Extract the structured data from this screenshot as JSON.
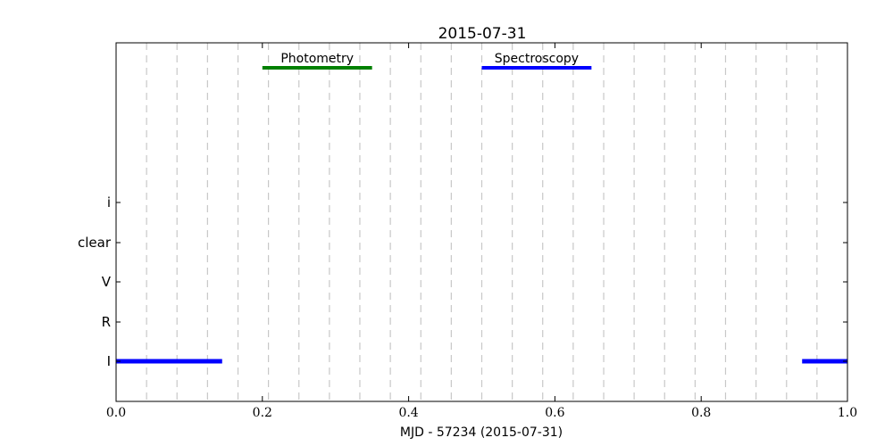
{
  "chart_data": {
    "type": "timeline",
    "title": "2015-07-31",
    "xlabel": "MJD - 57234 (2015-07-31)",
    "xlim": [
      0.0,
      1.0
    ],
    "xticks": [
      "0.0",
      "0.2",
      "0.4",
      "0.6",
      "0.8",
      "1.0"
    ],
    "xtick_values": [
      0.0,
      0.2,
      0.4,
      0.6,
      0.8,
      1.0
    ],
    "categories": [
      "I",
      "R",
      "V",
      "clear",
      "i"
    ],
    "grid_x": [
      0.0417,
      0.0833,
      0.125,
      0.1667,
      0.2083,
      0.25,
      0.2917,
      0.3333,
      0.375,
      0.4167,
      0.4583,
      0.5,
      0.5417,
      0.5833,
      0.625,
      0.6667,
      0.7083,
      0.75,
      0.7917,
      0.8333,
      0.875,
      0.9167,
      0.9583
    ],
    "grid": "vertical dashed",
    "segments": [
      {
        "filter": "I",
        "x0": 0.0,
        "x1": 0.145,
        "color": "#0000ff"
      },
      {
        "filter": "I",
        "x0": 0.938,
        "x1": 1.0,
        "color": "#0000ff"
      }
    ],
    "annotations": [
      {
        "label": "Photometry",
        "x0": 0.2,
        "x1": 0.35,
        "color": "#008000"
      },
      {
        "label": "Spectroscopy",
        "x0": 0.5,
        "x1": 0.65,
        "color": "#0000ff"
      }
    ]
  }
}
